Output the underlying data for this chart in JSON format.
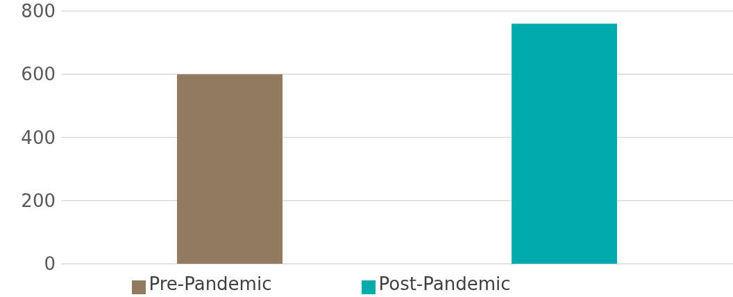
{
  "chart_data": {
    "type": "bar",
    "categories": [
      null
    ],
    "series": [
      {
        "name": "Pre-Pandemic",
        "color": "#937b62",
        "values": [
          600
        ]
      },
      {
        "name": "Post-Pandemic",
        "color": "#00aaad",
        "values": [
          760
        ]
      }
    ],
    "ylim": [
      0,
      800
    ],
    "yticks": [
      0,
      200,
      400,
      600,
      800
    ],
    "grid": "y",
    "legend": "bottom"
  }
}
